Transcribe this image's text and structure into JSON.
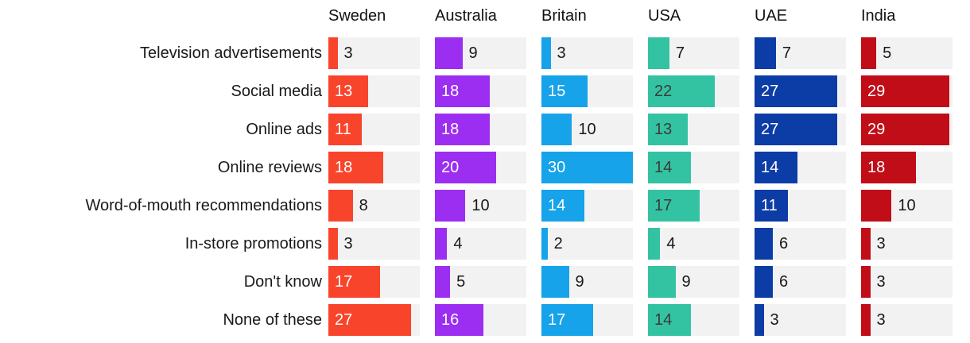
{
  "chart_data": {
    "type": "bar",
    "orientation": "horizontal",
    "title": "",
    "xlabel": "",
    "ylabel": "",
    "value_range": [
      0,
      30
    ],
    "grid": false,
    "legend_position": "column-headers-top",
    "track_color": "#f2f2f2",
    "outside_value_color": "#191919",
    "header_text_color": "#111111",
    "value_label_inside_min": 11,
    "categories": [
      "Television advertisements",
      "Social media",
      "Online ads",
      "Online reviews",
      "Word-of-mouth recommendations",
      "In-store promotions",
      "Don't know",
      "None of these"
    ],
    "series": [
      {
        "name": "Sweden",
        "color": "#f9442c",
        "inside_text_color": "#ffffff",
        "values": [
          3,
          13,
          11,
          18,
          8,
          3,
          17,
          27
        ]
      },
      {
        "name": "Australia",
        "color": "#9c2ef2",
        "inside_text_color": "#ffffff",
        "values": [
          9,
          18,
          18,
          20,
          10,
          4,
          5,
          16
        ]
      },
      {
        "name": "Britain",
        "color": "#16a3e9",
        "inside_text_color": "#ffffff",
        "values": [
          3,
          15,
          10,
          30,
          14,
          2,
          9,
          17
        ]
      },
      {
        "name": "USA",
        "color": "#33c3a2",
        "inside_text_color": "#3b3b3b",
        "values": [
          7,
          22,
          13,
          14,
          17,
          4,
          9,
          14
        ]
      },
      {
        "name": "UAE",
        "color": "#0c3ca6",
        "inside_text_color": "#ffffff",
        "values": [
          7,
          27,
          27,
          14,
          11,
          6,
          6,
          3
        ]
      },
      {
        "name": "India",
        "color": "#c00d18",
        "inside_text_color": "#ffffff",
        "values": [
          5,
          29,
          29,
          18,
          10,
          3,
          3,
          3
        ]
      }
    ]
  }
}
